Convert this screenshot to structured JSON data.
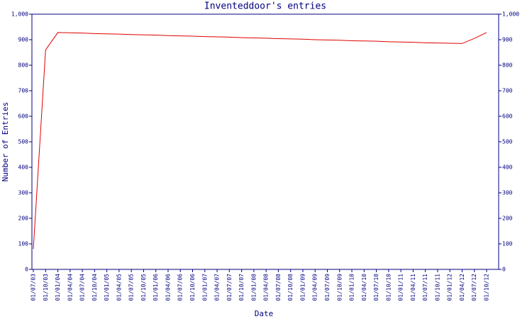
{
  "chart_data": {
    "type": "line",
    "title": "Inventeddoor's entries",
    "x_label": "Date",
    "y_label": "Number of Entries",
    "categories": [
      "01/07/03",
      "01/10/03",
      "01/01/04",
      "01/04/04",
      "01/07/04",
      "01/10/04",
      "01/01/05",
      "01/04/05",
      "01/07/05",
      "01/10/05",
      "01/01/06",
      "01/04/06",
      "01/07/06",
      "01/10/06",
      "01/01/07",
      "01/04/07",
      "01/07/07",
      "01/10/07",
      "01/01/08",
      "01/04/08",
      "01/07/08",
      "01/10/08",
      "01/01/09",
      "01/04/09",
      "01/07/09",
      "01/10/09",
      "01/01/10",
      "01/04/10",
      "01/07/10",
      "01/10/10",
      "01/01/11",
      "01/04/11",
      "01/07/11",
      "01/10/11",
      "01/01/12",
      "01/04/12",
      "01/07/12",
      "01/10/12"
    ],
    "series": [
      {
        "name": "Entries",
        "color": "#e00000",
        "values": [
          80,
          860,
          928,
          927,
          926,
          924,
          923,
          922,
          920,
          919,
          918,
          916,
          915,
          914,
          912,
          911,
          910,
          908,
          907,
          906,
          904,
          903,
          902,
          900,
          899,
          898,
          896,
          895,
          894,
          892,
          891,
          890,
          888,
          887,
          886,
          885,
          905,
          928
        ]
      }
    ],
    "ylim": [
      0,
      1000
    ],
    "yticks": [
      0,
      100,
      200,
      300,
      400,
      500,
      600,
      700,
      800,
      900,
      {
        "value": 1000,
        "label": "1,000"
      }
    ],
    "y2lim": [
      0,
      1000
    ],
    "y2ticks": [
      0,
      100,
      200,
      300,
      400,
      500,
      600,
      700,
      800,
      900,
      {
        "value": 1000,
        "label": "1,000"
      }
    ],
    "axis_color": "#000080"
  }
}
